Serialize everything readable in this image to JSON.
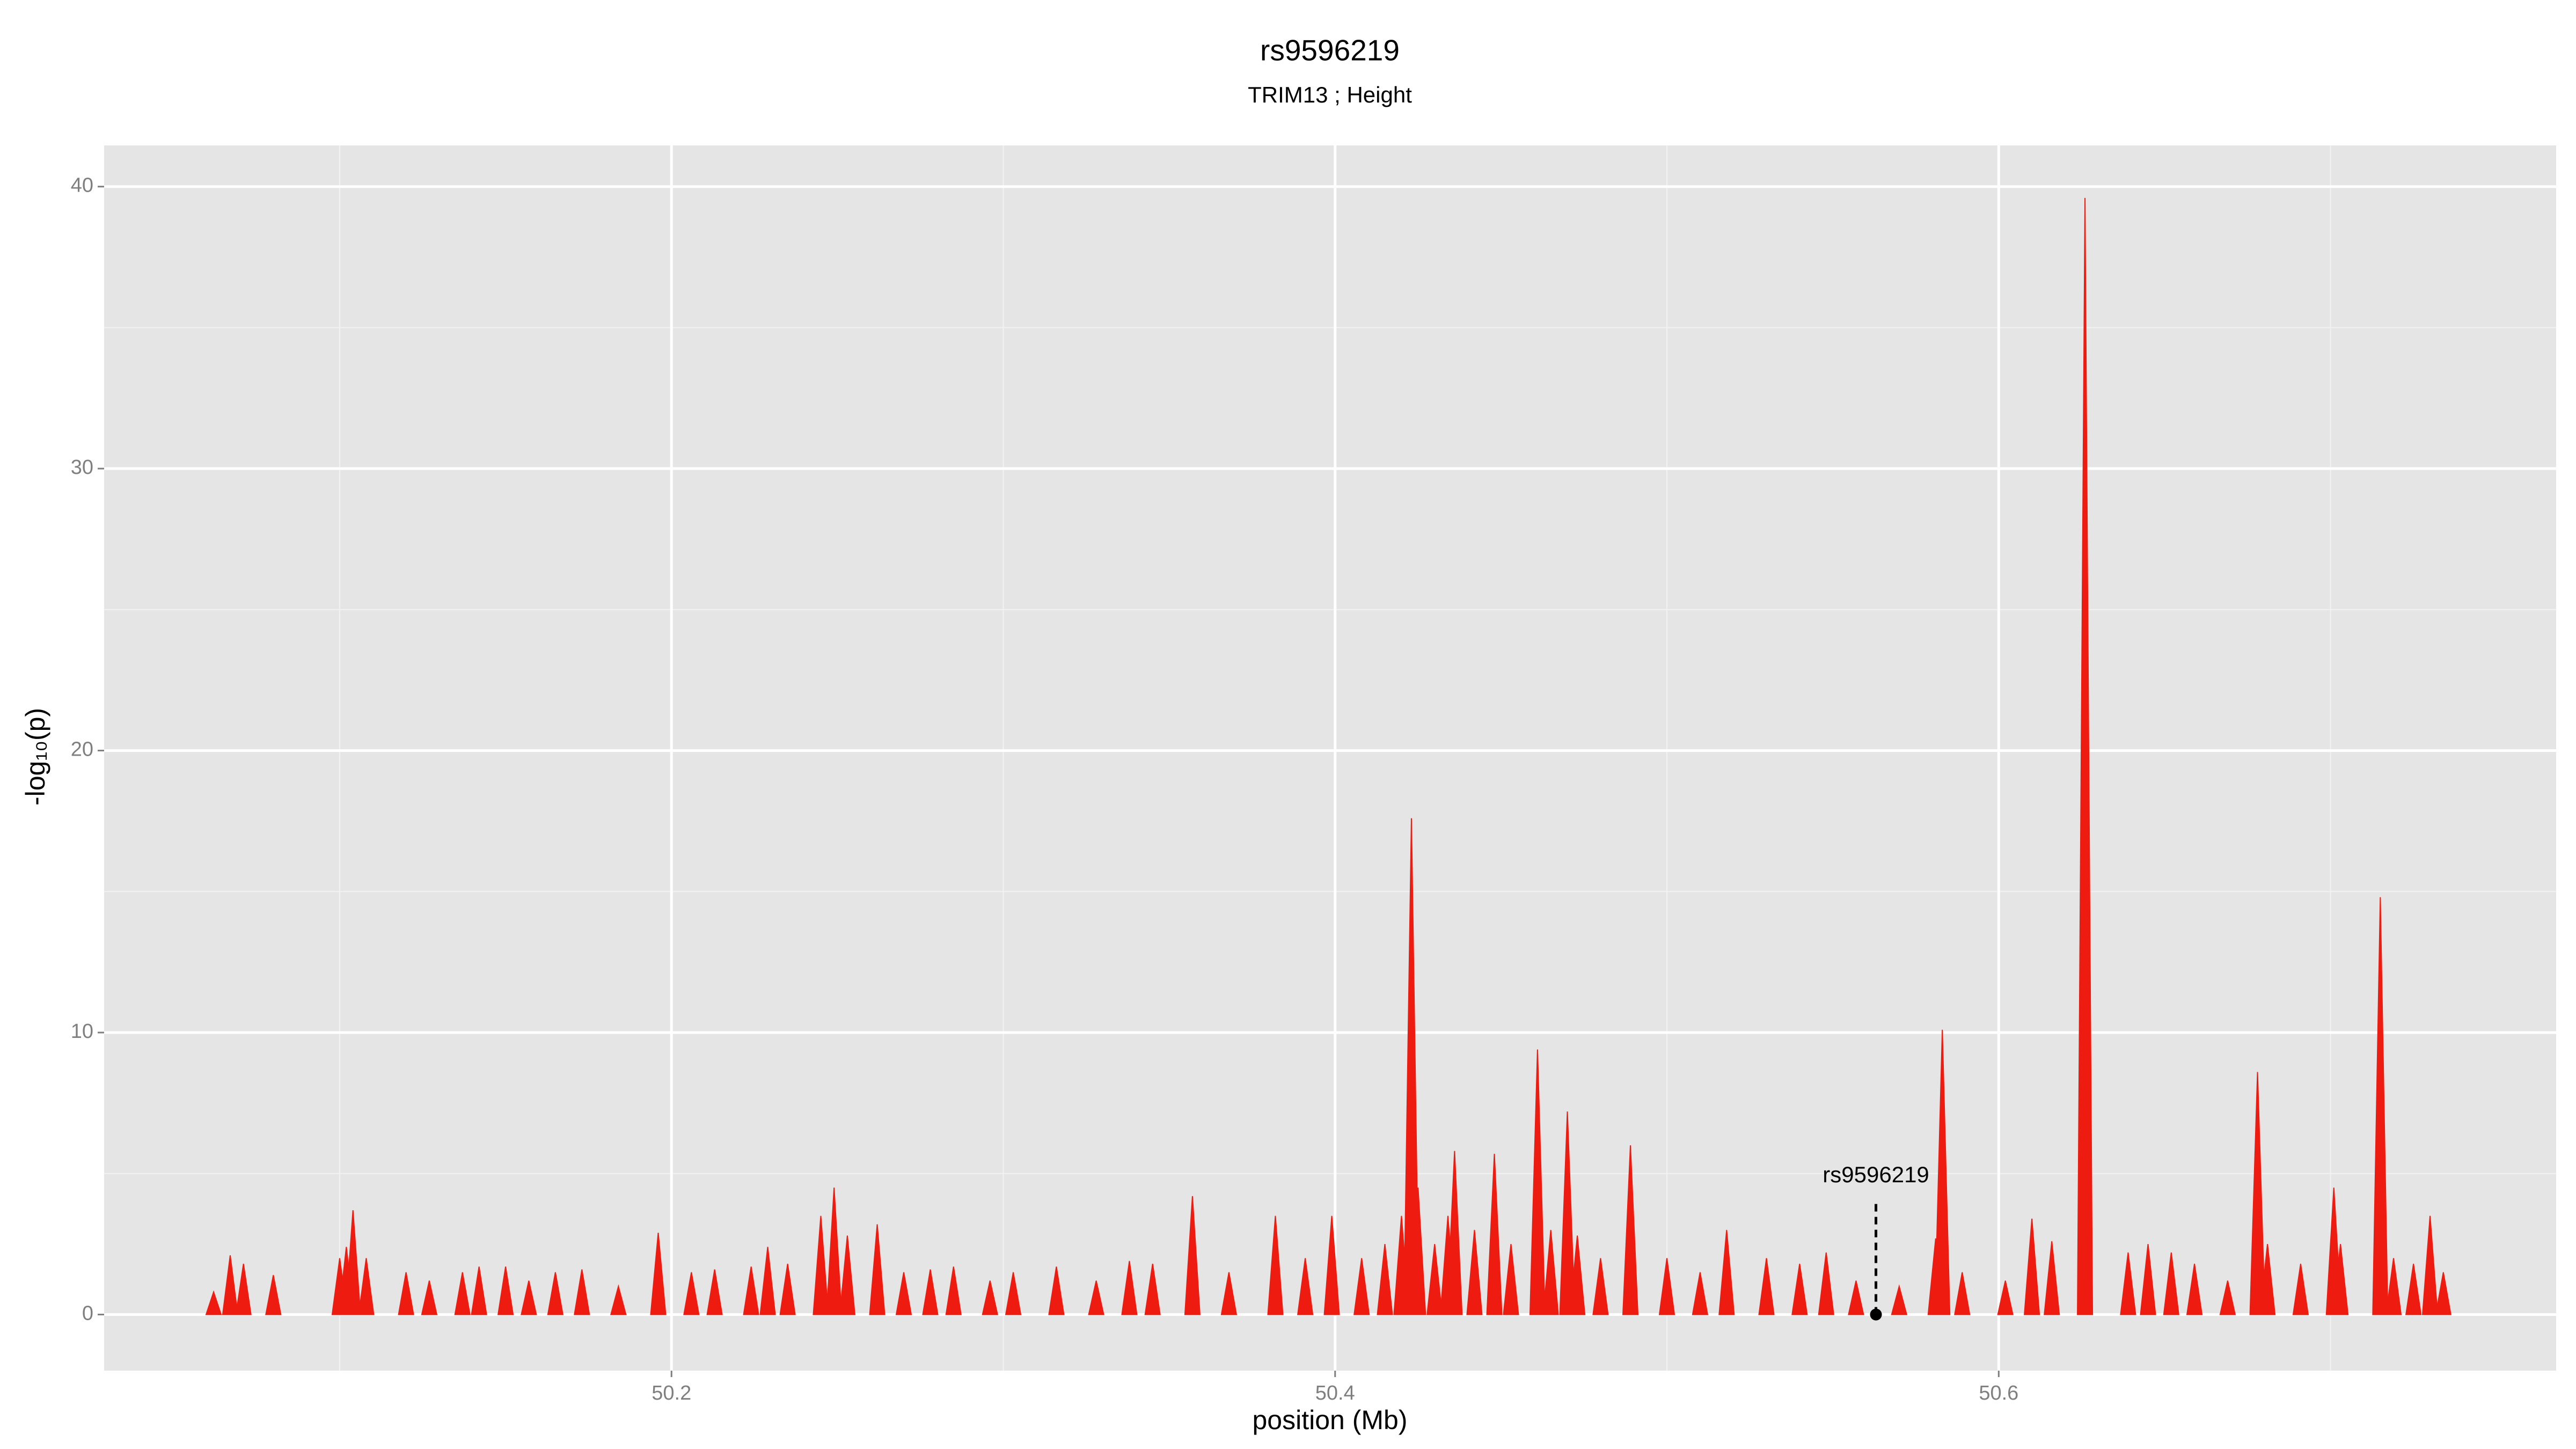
{
  "chart_data": {
    "type": "spike",
    "title": "rs9596219",
    "subtitle": "TRIM13 ; Height",
    "x_label": "position (Mb)",
    "y_label": "-log₁₀(p)",
    "xlim": [
      50.029,
      50.768
    ],
    "ylim": [
      -1.99,
      41.46
    ],
    "xticks": [
      50.2,
      50.4,
      50.6
    ],
    "yticks": [
      0,
      10,
      20,
      30,
      40
    ],
    "xminor": [
      50.1,
      50.3,
      50.5,
      50.7
    ],
    "yminor": [
      5,
      15,
      25,
      35
    ],
    "grid": true,
    "series": [
      {
        "color": "#ee1c10",
        "x": [
          50.062,
          50.067,
          50.071,
          50.08,
          50.1,
          50.102,
          50.104,
          50.108,
          50.12,
          50.127,
          50.137,
          50.142,
          50.15,
          50.157,
          50.165,
          50.173,
          50.184,
          50.196,
          50.206,
          50.213,
          50.224,
          50.229,
          50.235,
          50.245,
          50.249,
          50.253,
          50.262,
          50.27,
          50.278,
          50.285,
          50.296,
          50.303,
          50.316,
          50.328,
          50.338,
          50.345,
          50.357,
          50.368,
          50.382,
          50.391,
          50.399,
          50.408,
          50.415,
          50.42,
          50.423,
          50.425,
          50.43,
          50.434,
          50.436,
          50.442,
          50.448,
          50.453,
          50.461,
          50.465,
          50.47,
          50.473,
          50.48,
          50.489,
          50.5,
          50.51,
          50.518,
          50.53,
          50.54,
          50.548,
          50.557,
          50.57,
          50.581,
          50.583,
          50.589,
          50.602,
          50.61,
          50.616,
          50.626,
          50.639,
          50.645,
          50.652,
          50.659,
          50.669,
          50.678,
          50.681,
          50.691,
          50.701,
          50.703,
          50.715,
          50.719,
          50.725,
          50.73,
          50.734
        ],
        "values": [
          0.8,
          2.1,
          1.8,
          1.4,
          2.0,
          2.4,
          3.7,
          2.0,
          1.5,
          1.2,
          1.5,
          1.7,
          1.7,
          1.2,
          1.5,
          1.6,
          1.0,
          2.9,
          1.5,
          1.6,
          1.7,
          2.4,
          1.8,
          3.5,
          4.5,
          2.8,
          3.2,
          1.5,
          1.6,
          1.7,
          1.2,
          1.5,
          1.7,
          1.2,
          1.9,
          1.8,
          4.2,
          1.5,
          3.5,
          2.0,
          3.5,
          2.0,
          2.5,
          3.5,
          17.6,
          4.5,
          2.5,
          3.5,
          5.8,
          3.0,
          5.7,
          2.5,
          9.4,
          3.0,
          7.2,
          2.8,
          2.0,
          6.0,
          2.0,
          1.5,
          3.0,
          2.0,
          1.8,
          2.2,
          1.2,
          1.0,
          2.7,
          10.1,
          1.5,
          1.2,
          3.4,
          2.6,
          39.6,
          2.2,
          2.5,
          2.2,
          1.8,
          1.2,
          8.6,
          2.5,
          1.8,
          4.5,
          2.5,
          14.8,
          2.0,
          1.8,
          3.5,
          1.5
        ]
      }
    ],
    "annotation": {
      "text": "rs9596219",
      "x": 50.563,
      "y": 0,
      "line_top": 4,
      "label_y": 4.9
    }
  }
}
